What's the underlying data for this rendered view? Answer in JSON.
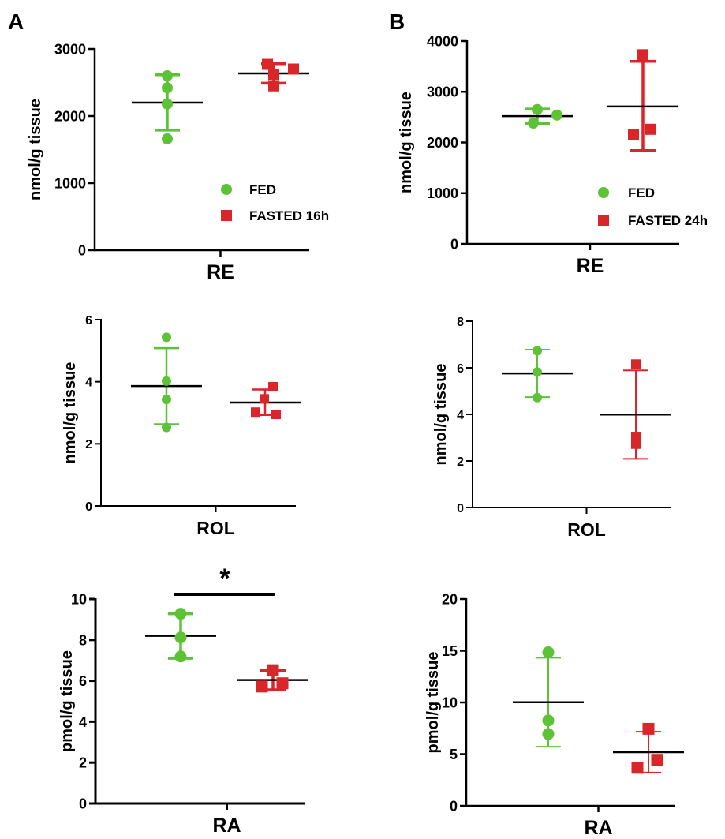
{
  "colors": {
    "fed": "#5ec236",
    "fasted": "#d9262a",
    "axis": "#000000"
  },
  "chart_data": [
    {
      "panel": "A",
      "type": "scatter",
      "ylabel": "nmol/g tissue",
      "xlabel": "RE",
      "ylim": [
        0,
        3000
      ],
      "yticks": [
        "0",
        "1000",
        "2000",
        "3000"
      ],
      "legend": [
        "FED",
        "FASTED 16h"
      ],
      "series": [
        {
          "name": "FED",
          "points": [
            2600,
            2420,
            2180,
            1660
          ],
          "mean": 2200,
          "err": [
            1790,
            2615
          ]
        },
        {
          "name": "FASTED 16h",
          "points": [
            2770,
            2700,
            2620,
            2450
          ],
          "mean": 2635,
          "err": [
            2490,
            2780
          ]
        }
      ]
    },
    {
      "panel": "B",
      "type": "scatter",
      "ylabel": "nmol/g tissue",
      "xlabel": "RE",
      "ylim": [
        0,
        4000
      ],
      "yticks": [
        "0",
        "1000",
        "2000",
        "3000",
        "4000"
      ],
      "legend": [
        "FED",
        "FASTED 24h"
      ],
      "series": [
        {
          "name": "FED",
          "points": [
            2650,
            2540,
            2380
          ],
          "mean": 2520,
          "err": [
            2370,
            2660
          ]
        },
        {
          "name": "FASTED 24h",
          "points": [
            3730,
            2260,
            2160
          ],
          "mean": 2710,
          "err": [
            1840,
            3600
          ]
        }
      ]
    },
    {
      "panel": "",
      "type": "scatter",
      "ylabel": "nmol/g tissue",
      "xlabel": "ROL",
      "ylim": [
        0,
        6
      ],
      "yticks": [
        "0",
        "2",
        "4",
        "6"
      ],
      "series": [
        {
          "points": [
            5.43,
            4.02,
            3.43,
            2.53
          ],
          "mean": 3.86,
          "err": [
            2.63,
            5.08
          ]
        },
        {
          "points": [
            3.84,
            3.45,
            3.02,
            2.95
          ],
          "mean": 3.33,
          "err": [
            2.93,
            3.75
          ]
        }
      ]
    },
    {
      "panel": "",
      "type": "scatter",
      "ylabel": "nmol/g tissue",
      "xlabel": "ROL",
      "ylim": [
        0,
        8
      ],
      "yticks": [
        "0",
        "2",
        "4",
        "6",
        "8"
      ],
      "series": [
        {
          "points": [
            6.73,
            5.82,
            4.72
          ],
          "mean": 5.76,
          "err": [
            4.74,
            6.78
          ]
        },
        {
          "points": [
            6.16,
            3.05,
            2.72
          ],
          "mean": 3.99,
          "err": [
            2.09,
            5.89
          ]
        }
      ]
    },
    {
      "panel": "",
      "type": "scatter",
      "ylabel": "pmol/g tissue",
      "xlabel": "RA",
      "ylim": [
        0,
        10
      ],
      "yticks": [
        "0",
        "2",
        "4",
        "6",
        "8",
        "10"
      ],
      "annotation": "*",
      "series": [
        {
          "points": [
            9.28,
            8.12,
            7.19
          ],
          "mean": 8.2,
          "err": [
            7.1,
            9.28
          ]
        },
        {
          "points": [
            6.52,
            5.88,
            5.72
          ],
          "mean": 6.04,
          "err": [
            5.56,
            6.5
          ]
        }
      ]
    },
    {
      "panel": "",
      "type": "scatter",
      "ylabel": "pmol/g tissue",
      "xlabel": "RA",
      "ylim": [
        0,
        20
      ],
      "yticks": [
        "0",
        "5",
        "10",
        "15",
        "20"
      ],
      "series": [
        {
          "points": [
            14.85,
            8.25,
            6.95
          ],
          "mean": 10.02,
          "err": [
            5.72,
            14.32
          ]
        },
        {
          "points": [
            7.45,
            4.45,
            3.68
          ],
          "mean": 5.19,
          "err": [
            3.22,
            7.17
          ]
        }
      ]
    }
  ]
}
